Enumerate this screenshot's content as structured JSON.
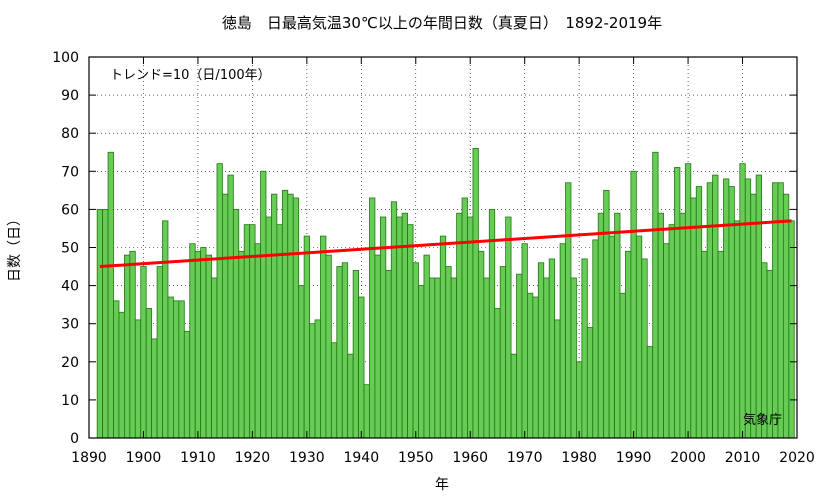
{
  "chart_data": {
    "type": "bar",
    "title": "徳島　日最高気温30℃以上の年間日数（真夏日）　1892-2019年",
    "xlabel": "年",
    "ylabel": "日数（日）",
    "xlim": [
      1890,
      2020
    ],
    "ylim": [
      0,
      100
    ],
    "x_ticks": [
      "1890",
      "1900",
      "1910",
      "1920",
      "1930",
      "1940",
      "1950",
      "1960",
      "1970",
      "1980",
      "1990",
      "2000",
      "2010",
      "2020"
    ],
    "y_ticks": [
      "0",
      "10",
      "20",
      "30",
      "40",
      "50",
      "60",
      "70",
      "80",
      "90",
      "100"
    ],
    "grid": "dotted",
    "trend_label": "トレンド=10（日/100年）",
    "trend": {
      "x": [
        1892,
        2019
      ],
      "y": [
        45,
        57
      ]
    },
    "source": "気象庁",
    "colors": {
      "bar_fill": "#66cc55",
      "bar_edge": "#227711",
      "trend": "#ff0000"
    },
    "years": [
      1892,
      1893,
      1894,
      1895,
      1896,
      1897,
      1898,
      1899,
      1900,
      1901,
      1902,
      1903,
      1904,
      1905,
      1906,
      1907,
      1908,
      1909,
      1910,
      1911,
      1912,
      1913,
      1914,
      1915,
      1916,
      1917,
      1918,
      1919,
      1920,
      1921,
      1922,
      1923,
      1924,
      1925,
      1926,
      1927,
      1928,
      1929,
      1930,
      1931,
      1932,
      1933,
      1934,
      1935,
      1936,
      1937,
      1938,
      1939,
      1940,
      1941,
      1942,
      1943,
      1944,
      1945,
      1946,
      1947,
      1948,
      1949,
      1950,
      1951,
      1952,
      1953,
      1954,
      1955,
      1956,
      1957,
      1958,
      1959,
      1960,
      1961,
      1962,
      1963,
      1964,
      1965,
      1966,
      1967,
      1968,
      1969,
      1970,
      1971,
      1972,
      1973,
      1974,
      1975,
      1976,
      1977,
      1978,
      1979,
      1980,
      1981,
      1982,
      1983,
      1984,
      1985,
      1986,
      1987,
      1988,
      1989,
      1990,
      1991,
      1992,
      1993,
      1994,
      1995,
      1996,
      1997,
      1998,
      1999,
      2000,
      2001,
      2002,
      2003,
      2004,
      2005,
      2006,
      2007,
      2008,
      2009,
      2010,
      2011,
      2012,
      2013,
      2014,
      2015,
      2016,
      2017,
      2018,
      2019
    ],
    "values": [
      60,
      60,
      75,
      36,
      33,
      48,
      49,
      31,
      45,
      34,
      26,
      45,
      57,
      37,
      36,
      36,
      28,
      51,
      49,
      50,
      48,
      42,
      72,
      64,
      69,
      60,
      49,
      56,
      56,
      51,
      70,
      58,
      64,
      56,
      65,
      64,
      63,
      40,
      53,
      30,
      31,
      53,
      48,
      25,
      45,
      46,
      22,
      44,
      37,
      14,
      63,
      48,
      58,
      44,
      62,
      58,
      59,
      56,
      46,
      40,
      48,
      42,
      42,
      53,
      45,
      42,
      59,
      63,
      58,
      76,
      49,
      42,
      60,
      34,
      45,
      58,
      22,
      43,
      51,
      38,
      37,
      46,
      42,
      47,
      31,
      51,
      67,
      42,
      20,
      47,
      29,
      52,
      59,
      65,
      53,
      59,
      38,
      49,
      70,
      53,
      47,
      24,
      75,
      59,
      51,
      56,
      71,
      59,
      72,
      63,
      66,
      49,
      67,
      69,
      49,
      68,
      66,
      57,
      72,
      68,
      64,
      69,
      46,
      44,
      67,
      67,
      64,
      57
    ]
  }
}
